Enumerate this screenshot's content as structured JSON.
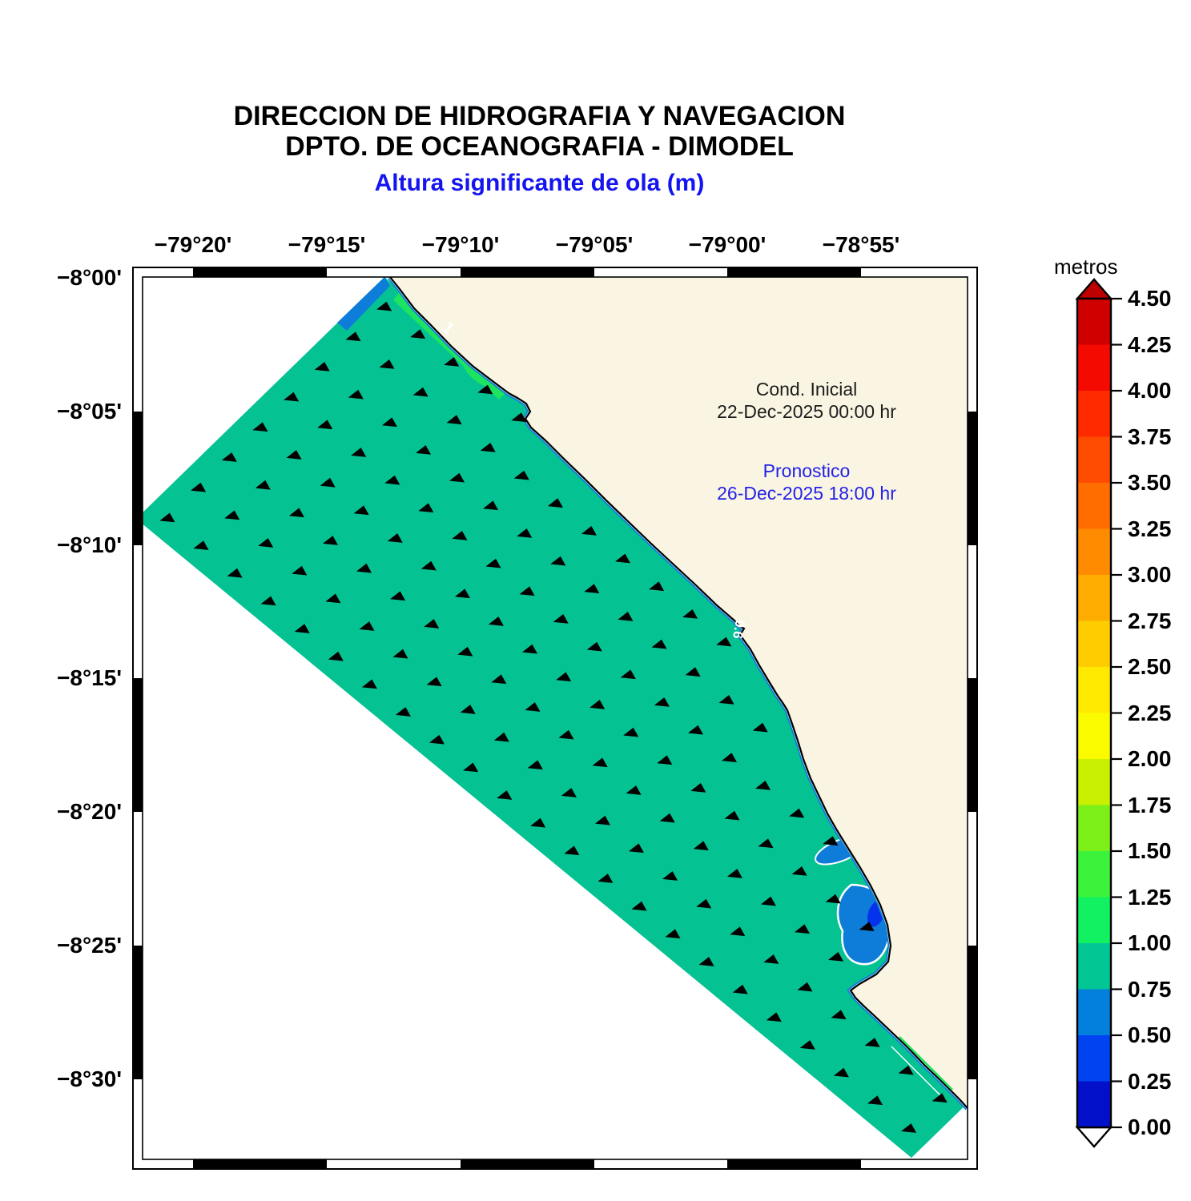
{
  "header": {
    "title_line1": "DIRECCION DE HIDROGRAFIA Y NAVEGACION",
    "title_line2": "DPTO. DE OCEANOGRAFIA - DIMODEL",
    "subtitle": "Altura significante de ola (m)",
    "subtitle_color": "#1414F0"
  },
  "annotations": {
    "initial_label": "Cond. Inicial",
    "initial_datetime": "22-Dec-2025 00:00 hr",
    "initial_color": "#1C1C1C",
    "forecast_label": "Pronostico",
    "forecast_datetime": "26-Dec-2025 18:00 hr",
    "forecast_color": "#2222E8"
  },
  "map": {
    "x_tick_labels": [
      "−79°20'",
      "−79°15'",
      "−79°10'",
      "−79°05'",
      "−79°00'",
      "−78°55'"
    ],
    "y_tick_labels": [
      "−8°00'",
      "−8°05'",
      "−8°10'",
      "−8°15'",
      "−8°20'",
      "−8°25'",
      "−8°30'"
    ],
    "contour_label_1": "1",
    "contour_label_06": "0.6",
    "sea_color": "#05C293",
    "land_color": "#FAF4E2",
    "shallow_color": "#0E7DD9",
    "deep_shallow_color": "#0533EC",
    "nearshore_green": "#1CE45F",
    "arrow_color": "#000000"
  },
  "colorbar": {
    "title": "metros",
    "tick_labels_top_to_bottom": [
      "4.50",
      "4.25",
      "4.00",
      "3.75",
      "3.50",
      "3.25",
      "3.00",
      "2.75",
      "2.50",
      "2.25",
      "2.00",
      "1.75",
      "1.50",
      "1.25",
      "1.00",
      "0.75",
      "0.50",
      "0.25",
      "0.00"
    ],
    "segment_colors_top_to_bottom": [
      "#CE0000",
      "#F40A00",
      "#FF2A00",
      "#FF4C00",
      "#FF6C00",
      "#FF8C00",
      "#FFAC00",
      "#FFCC00",
      "#FFE900",
      "#FBFB00",
      "#C8F000",
      "#7DF01A",
      "#3BF33B",
      "#12F162",
      "#02C795",
      "#0380DC",
      "#0243F1",
      "#0211C9"
    ],
    "over_arrow_color": "#BE0000",
    "under_arrow_color": "#FFFFFF"
  }
}
